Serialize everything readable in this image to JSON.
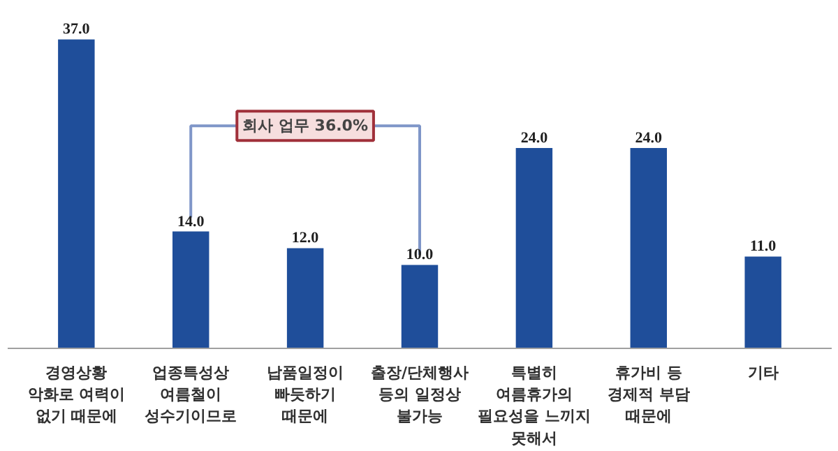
{
  "chart_data": {
    "type": "bar",
    "categories": [
      "경영상황\n악화로 여력이\n없기 때문에",
      "업종특성상\n여름철이\n성수기이므로",
      "납품일정이\n빠듯하기\n때문에",
      "출장/단체행사\n등의 일정상\n불가능",
      "특별히\n여름휴가의\n필요성을 느끼지\n못해서",
      "휴가비 등\n경제적 부담\n때문에",
      "기타"
    ],
    "values": [
      37.0,
      14.0,
      12.0,
      10.0,
      24.0,
      24.0,
      11.0
    ],
    "value_labels": [
      "37.0",
      "14.0",
      "12.0",
      "10.0",
      "24.0",
      "24.0",
      "11.0"
    ],
    "color": "#1f4e9a",
    "grid": false,
    "annotations": [
      "회사 업무 36.0%"
    ]
  }
}
